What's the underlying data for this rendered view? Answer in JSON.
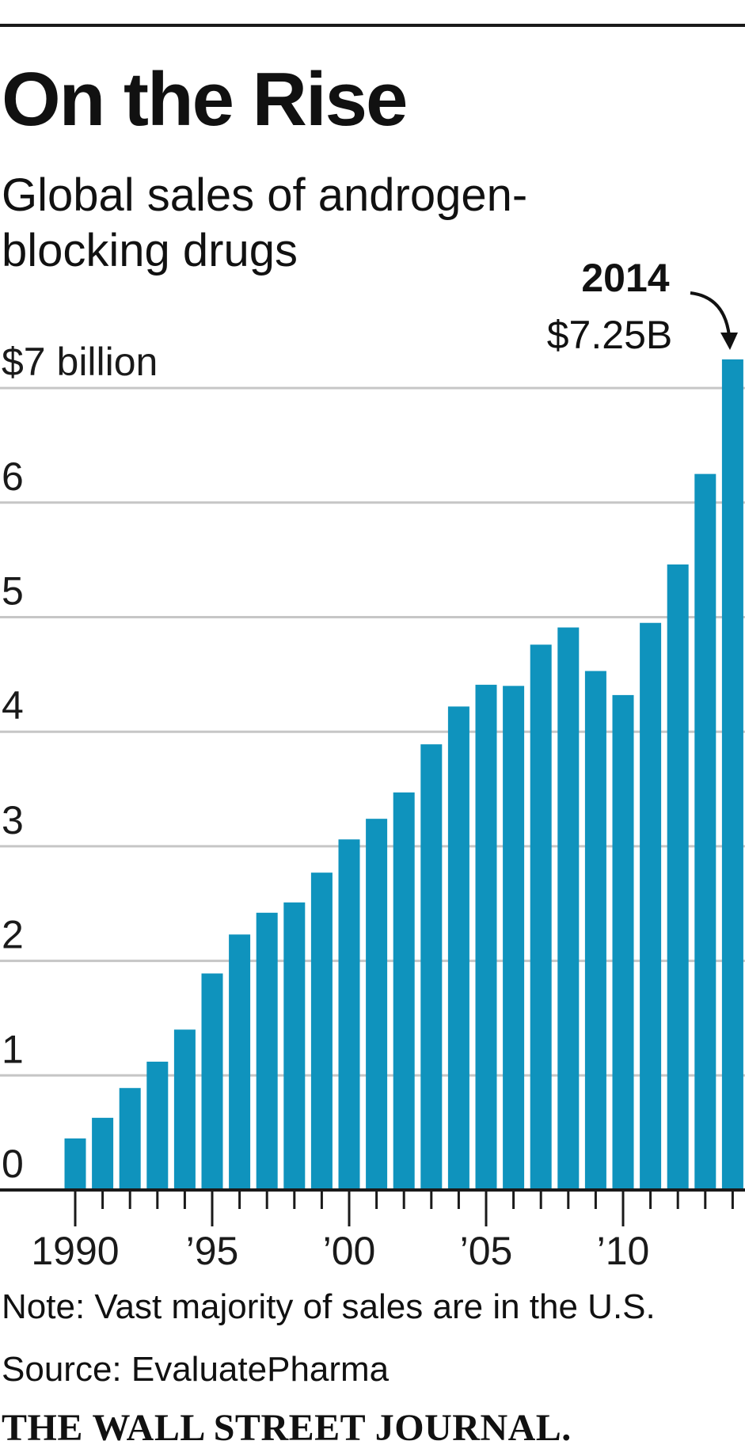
{
  "header": {
    "title": "On the Rise",
    "subtitle": "Global sales of androgen-blocking drugs"
  },
  "chart_data": {
    "type": "bar",
    "title": "On the Rise",
    "subtitle": "Global sales of androgen-blocking drugs",
    "xlabel": "",
    "ylabel": "",
    "unit": "$ billion",
    "categories": [
      "1990",
      "1991",
      "1992",
      "1993",
      "1994",
      "1995",
      "1996",
      "1997",
      "1998",
      "1999",
      "2000",
      "2001",
      "2002",
      "2003",
      "2004",
      "2005",
      "2006",
      "2007",
      "2008",
      "2009",
      "2010",
      "2011",
      "2012",
      "2013",
      "2014"
    ],
    "values": [
      0.45,
      0.63,
      0.89,
      1.12,
      1.4,
      1.89,
      2.23,
      2.42,
      2.51,
      2.77,
      3.06,
      3.24,
      3.47,
      3.89,
      4.22,
      4.41,
      4.4,
      4.76,
      4.91,
      4.53,
      4.32,
      4.95,
      5.46,
      6.25,
      7.25
    ],
    "ylim": [
      0,
      7.25
    ],
    "y_ticks": [
      {
        "value": 7,
        "label": "$7 billion"
      },
      {
        "value": 6,
        "label": "6"
      },
      {
        "value": 5,
        "label": "5"
      },
      {
        "value": 4,
        "label": "4"
      },
      {
        "value": 3,
        "label": "3"
      },
      {
        "value": 2,
        "label": "2"
      },
      {
        "value": 1,
        "label": "1"
      },
      {
        "value": 0,
        "label": "0"
      }
    ],
    "x_tick_labels": [
      {
        "year": 1990,
        "label": "1990"
      },
      {
        "year": 1995,
        "label": "’95"
      },
      {
        "year": 2000,
        "label": "’00"
      },
      {
        "year": 2005,
        "label": "’05"
      },
      {
        "year": 2010,
        "label": "’10"
      }
    ],
    "annotation": {
      "year": 2014,
      "label_year": "2014",
      "label_value": "$7.25B"
    },
    "grid": true,
    "legend": "none",
    "bar_color": "#0f93bd"
  },
  "footer": {
    "note": "Note: Vast majority of sales are in the U.S.",
    "source": "Source: EvaluatePharma",
    "logo": "THE WALL STREET JOURNAL."
  }
}
